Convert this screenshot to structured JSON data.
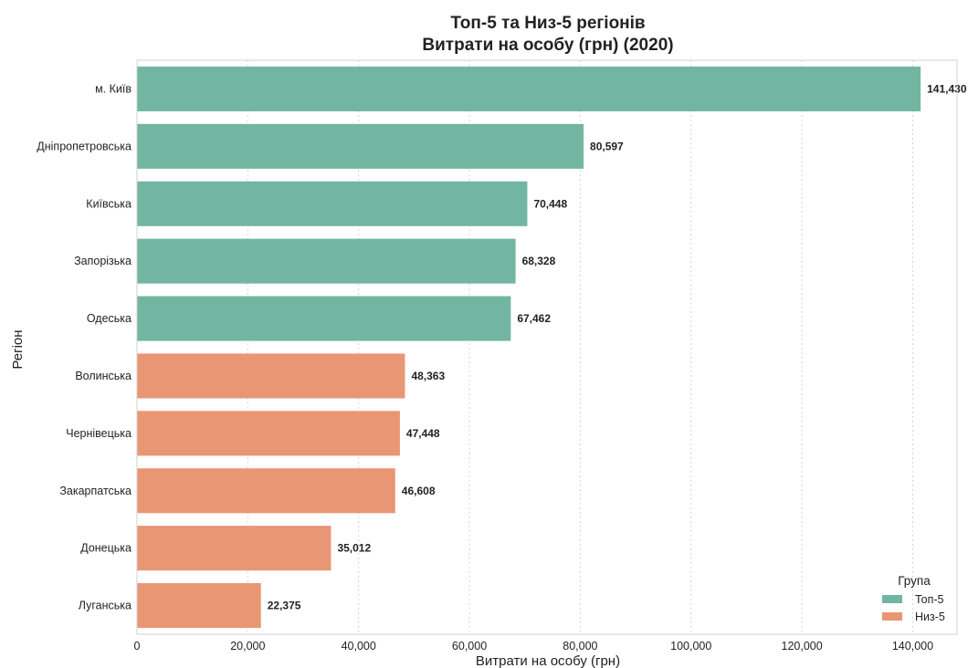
{
  "chart_data": {
    "type": "bar",
    "orientation": "horizontal",
    "title": "Топ-5 та Низ-5 регіонів",
    "subtitle": "Витрати на особу (грн) (2020)",
    "xlabel": "Витрати на особу (грн)",
    "ylabel": "Регіон",
    "xlim": [
      0,
      148000
    ],
    "xticks": [
      0,
      20000,
      40000,
      60000,
      80000,
      100000,
      120000,
      140000
    ],
    "xtick_labels": [
      "0",
      "20,000",
      "40,000",
      "60,000",
      "80,000",
      "100,000",
      "120,000",
      "140,000"
    ],
    "grid": "vertical dotted",
    "categories": [
      "м. Київ",
      "Дніпропетровська",
      "Київська",
      "Запорізька",
      "Одеська",
      "Волинська",
      "Чернівецька",
      "Закарпатська",
      "Донецька",
      "Луганська"
    ],
    "values": [
      141430,
      80597,
      70448,
      68328,
      67462,
      48363,
      47448,
      46608,
      35012,
      22375
    ],
    "value_labels": [
      "141,430",
      "80,597",
      "70,448",
      "68,328",
      "67,462",
      "48,363",
      "47,448",
      "46,608",
      "35,012",
      "22,375"
    ],
    "groups": [
      "Топ-5",
      "Топ-5",
      "Топ-5",
      "Топ-5",
      "Топ-5",
      "Низ-5",
      "Низ-5",
      "Низ-5",
      "Низ-5",
      "Низ-5"
    ],
    "legend": {
      "title": "Група",
      "placement": "bottom-right",
      "entries": [
        {
          "name": "Топ-5",
          "color": "#72b6a1"
        },
        {
          "name": "Низ-5",
          "color": "#e99675"
        }
      ]
    }
  }
}
